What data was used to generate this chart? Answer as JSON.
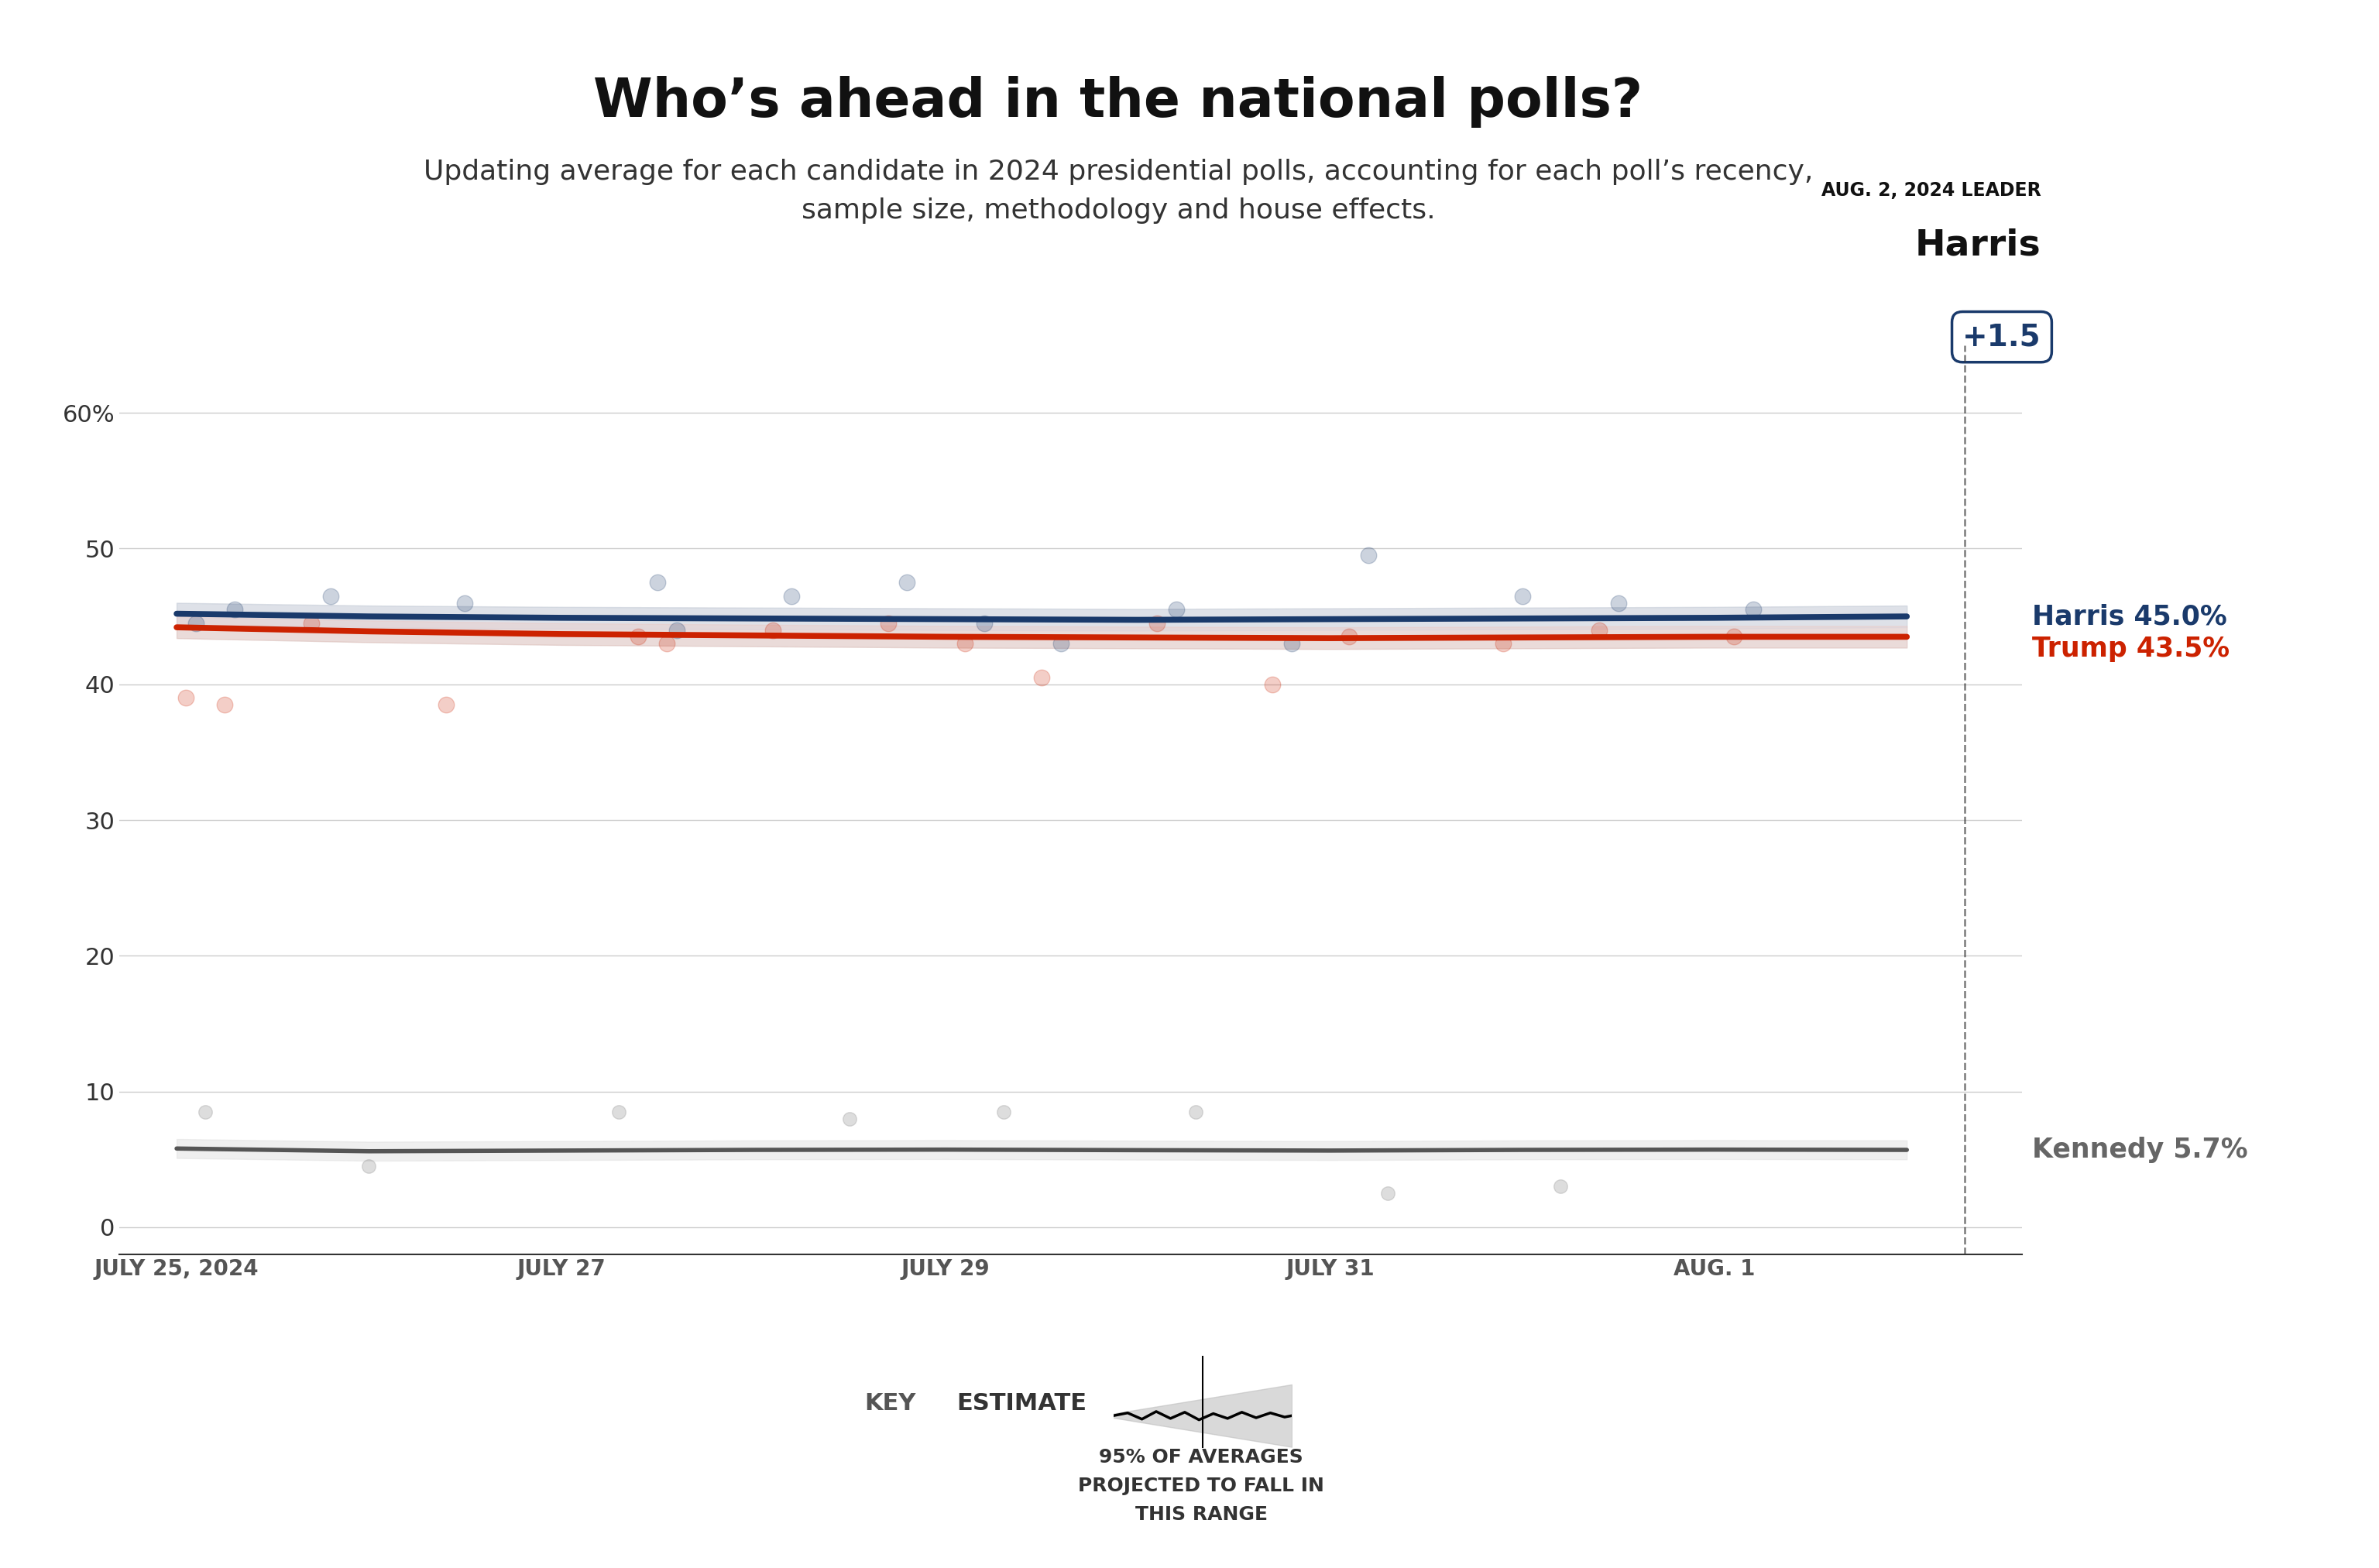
{
  "title": "Who’s ahead in the national polls?",
  "subtitle": "Updating average for each candidate in 2024 presidential polls, accounting for each poll’s recency,\nsample size, methodology and house effects.",
  "leader_label": "AUG. 2, 2024 LEADER",
  "leader_name": "Harris",
  "leader_margin": "+1.5",
  "x_dates": [
    0,
    1,
    2,
    3,
    4,
    5,
    6,
    7,
    8,
    9
  ],
  "x_tick_positions": [
    0,
    2,
    4,
    6,
    8,
    9.3
  ],
  "x_tick_labels": [
    "JULY 25, 2024",
    "JULY 27",
    "JULY 29",
    "JULY 31",
    "AUG. 1",
    ""
  ],
  "harris_line": [
    45.2,
    45.0,
    44.9,
    44.85,
    44.8,
    44.75,
    44.8,
    44.85,
    44.9,
    45.0
  ],
  "harris_upper": [
    46.0,
    45.8,
    45.7,
    45.65,
    45.6,
    45.55,
    45.6,
    45.65,
    45.7,
    45.8
  ],
  "harris_lower": [
    44.4,
    44.2,
    44.1,
    44.05,
    44.0,
    43.95,
    44.0,
    44.05,
    44.1,
    44.2
  ],
  "trump_line": [
    44.2,
    43.9,
    43.7,
    43.6,
    43.5,
    43.45,
    43.4,
    43.45,
    43.5,
    43.5
  ],
  "trump_upper": [
    45.0,
    44.7,
    44.5,
    44.4,
    44.3,
    44.25,
    44.2,
    44.25,
    44.3,
    44.3
  ],
  "trump_lower": [
    43.4,
    43.1,
    42.9,
    42.8,
    42.7,
    42.65,
    42.6,
    42.65,
    42.7,
    42.7
  ],
  "kennedy_line": [
    5.8,
    5.6,
    5.65,
    5.7,
    5.72,
    5.68,
    5.65,
    5.7,
    5.72,
    5.7
  ],
  "kennedy_upper": [
    6.5,
    6.3,
    6.35,
    6.4,
    6.42,
    6.38,
    6.35,
    6.4,
    6.42,
    6.4
  ],
  "kennedy_lower": [
    5.1,
    4.9,
    4.95,
    5.0,
    5.02,
    4.98,
    4.95,
    5.0,
    5.02,
    5.0
  ],
  "harris_dots_x": [
    0.1,
    0.3,
    0.8,
    1.5,
    2.5,
    2.6,
    3.2,
    3.8,
    4.2,
    4.6,
    5.2,
    5.8,
    6.2,
    7.0,
    7.5,
    8.2
  ],
  "harris_dots_y": [
    44.5,
    45.5,
    46.5,
    46.0,
    47.5,
    44.0,
    46.5,
    47.5,
    44.5,
    43.0,
    45.5,
    43.0,
    49.5,
    46.5,
    46.0,
    45.5
  ],
  "trump_dots_x": [
    0.05,
    0.25,
    0.7,
    1.4,
    2.4,
    2.55,
    3.1,
    3.7,
    4.1,
    4.5,
    5.1,
    5.7,
    6.1,
    6.9,
    7.4,
    8.1
  ],
  "trump_dots_y": [
    39.0,
    38.5,
    44.5,
    38.5,
    43.5,
    43.0,
    44.0,
    44.5,
    43.0,
    40.5,
    44.5,
    40.0,
    43.5,
    43.0,
    44.0,
    43.5
  ],
  "kennedy_dots_x": [
    0.15,
    1.0,
    2.3,
    3.5,
    4.3,
    5.3,
    6.3,
    7.2
  ],
  "kennedy_dots_y": [
    8.5,
    4.5,
    8.5,
    8.0,
    8.5,
    8.5,
    2.5,
    3.0
  ],
  "harris_color": "#1a3a6b",
  "trump_color": "#cc2200",
  "kennedy_color": "#888888",
  "harris_fill": "#c8d4e8",
  "trump_fill": "#f0c0b8",
  "kennedy_fill": "#dddddd",
  "background_color": "#ffffff",
  "ylim": [
    -2,
    65
  ],
  "yticks": [
    0,
    10,
    20,
    30,
    40,
    50,
    60
  ],
  "ytick_labels": [
    "0",
    "10",
    "20",
    "30",
    "40",
    "50",
    "60%"
  ],
  "grid_color": "#cccccc"
}
